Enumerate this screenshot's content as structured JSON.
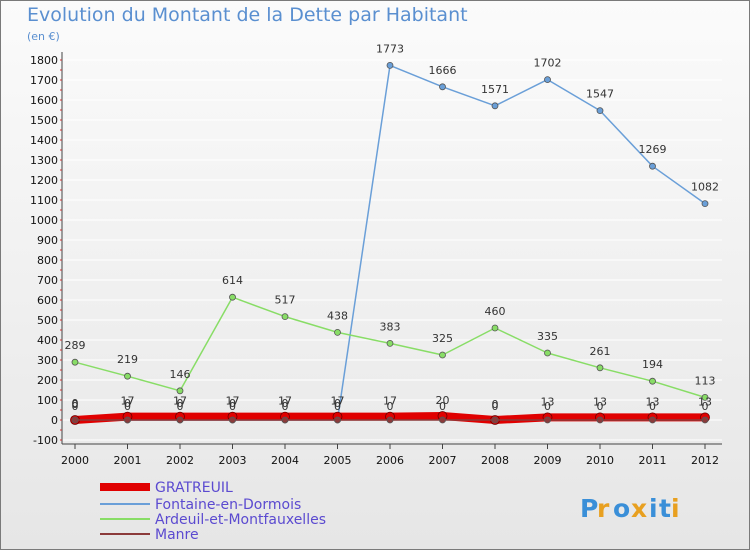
{
  "chart_data": {
    "type": "line",
    "title": "Evolution du Montant de la Dette par Habitant",
    "subtitle": "(en €)",
    "xlabel": "",
    "ylabel": "",
    "ylim": [
      -100,
      1800
    ],
    "yticks": [
      "-100",
      "0",
      "100",
      "200",
      "300",
      "400",
      "500",
      "600",
      "700",
      "800",
      "900",
      "1000",
      "1100",
      "1200",
      "1300",
      "1400",
      "1500",
      "1600",
      "1700",
      "1800"
    ],
    "x": [
      "2000",
      "2001",
      "2002",
      "2003",
      "2004",
      "2005",
      "2006",
      "2007",
      "2008",
      "2009",
      "2010",
      "2011",
      "2012"
    ],
    "series": [
      {
        "name": "GRATREUIL",
        "color": "#e00000",
        "values": [
          0,
          17,
          17,
          17,
          17,
          17,
          17,
          20,
          0,
          13,
          13,
          13,
          13
        ],
        "labels": [
          "0",
          "17",
          "17",
          "17",
          "17",
          "17",
          "17",
          "20",
          "0",
          "13",
          "13",
          "13",
          "13"
        ]
      },
      {
        "name": "Fontaine-en-Dormois",
        "color": "#6a9fd8",
        "values": [
          0,
          0,
          0,
          0,
          0,
          0,
          1773,
          1666,
          1571,
          1702,
          1547,
          1269,
          1082
        ],
        "labels": [
          "0",
          "0",
          "0",
          "0",
          "0",
          "0",
          "1773",
          "1666",
          "1571",
          "1702",
          "1547",
          "1269",
          "1082"
        ]
      },
      {
        "name": "Ardeuil-et-Montfauxelles",
        "color": "#88dd66",
        "values": [
          289,
          219,
          146,
          614,
          517,
          438,
          383,
          325,
          460,
          335,
          261,
          194,
          113
        ],
        "labels": [
          "289",
          "219",
          "146",
          "614",
          "517",
          "438",
          "383",
          "325",
          "460",
          "335",
          "261",
          "194",
          "113"
        ]
      },
      {
        "name": "Manre",
        "color": "#8b3a3a",
        "values": [
          0,
          0,
          0,
          0,
          0,
          0,
          0,
          0,
          0,
          0,
          0,
          0,
          0
        ],
        "labels": [
          "0",
          "0",
          "0",
          "0",
          "0",
          "0",
          "0",
          "0",
          "0",
          "0",
          "0",
          "0",
          "0"
        ]
      }
    ]
  },
  "logo": {
    "text": "Proxiti",
    "letters": [
      "P",
      "r",
      "o",
      "x",
      "i",
      "t",
      "i"
    ],
    "colors": [
      "#3a8fd8",
      "#e8a020",
      "#3a8fd8",
      "#e8a020",
      "#3a8fd8",
      "#3a8fd8",
      "#e8a020"
    ]
  }
}
